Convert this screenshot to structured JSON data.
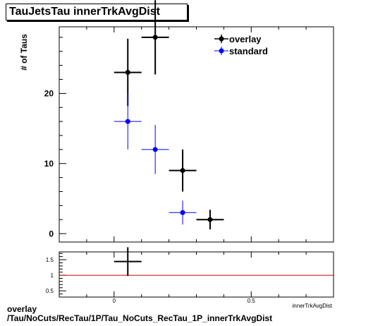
{
  "chart_data": [
    {
      "type": "scatter",
      "title": "TauJetsTau innerTrkAvgDist",
      "xlabel": "innerTrkAvgDist",
      "ylabel": "# of Taus",
      "xlim": [
        -0.2,
        0.8
      ],
      "ylim": [
        -1.2,
        29.5
      ],
      "y_ticks": [
        0,
        10,
        20
      ],
      "grid": false,
      "legend_position": "top-right",
      "series": [
        {
          "name": "overlay",
          "color": "#000000",
          "points": [
            {
              "x": 0.05,
              "y": 23,
              "xerr": 0.05,
              "yerr": 4.8
            },
            {
              "x": 0.15,
              "y": 28,
              "xerr": 0.05,
              "yerr": 5.3
            },
            {
              "x": 0.25,
              "y": 9,
              "xerr": 0.05,
              "yerr": 3.0
            },
            {
              "x": 0.35,
              "y": 2,
              "xerr": 0.05,
              "yerr": 1.4
            }
          ]
        },
        {
          "name": "standard",
          "color": "#0000ff",
          "points": [
            {
              "x": 0.05,
              "y": 16,
              "xerr": 0.05,
              "yerr": 4.0
            },
            {
              "x": 0.15,
              "y": 12,
              "xerr": 0.05,
              "yerr": 3.5
            },
            {
              "x": 0.25,
              "y": 3,
              "xerr": 0.05,
              "yerr": 1.7
            }
          ]
        }
      ]
    },
    {
      "type": "scatter",
      "title": "",
      "xlabel": "innerTrkAvgDist",
      "ylabel": "",
      "xlim": [
        -0.2,
        0.8
      ],
      "ylim": [
        0.3,
        1.75
      ],
      "y_ticks": [
        0.5,
        1,
        1.5
      ],
      "x_ticks": [
        0,
        0.5
      ],
      "reference_line": {
        "y": 1,
        "color": "#cc0000"
      },
      "series": [
        {
          "name": "",
          "color": "#000000",
          "points": [
            {
              "x": 0.05,
              "y": 1.44,
              "xerr": 0.05,
              "yerr": 0.46
            }
          ]
        }
      ]
    }
  ],
  "footer": {
    "line1": "overlay",
    "line2": "/Tau/NoCuts/RecTau/1P/Tau_NoCuts_RecTau_1P_innerTrkAvgDist"
  }
}
